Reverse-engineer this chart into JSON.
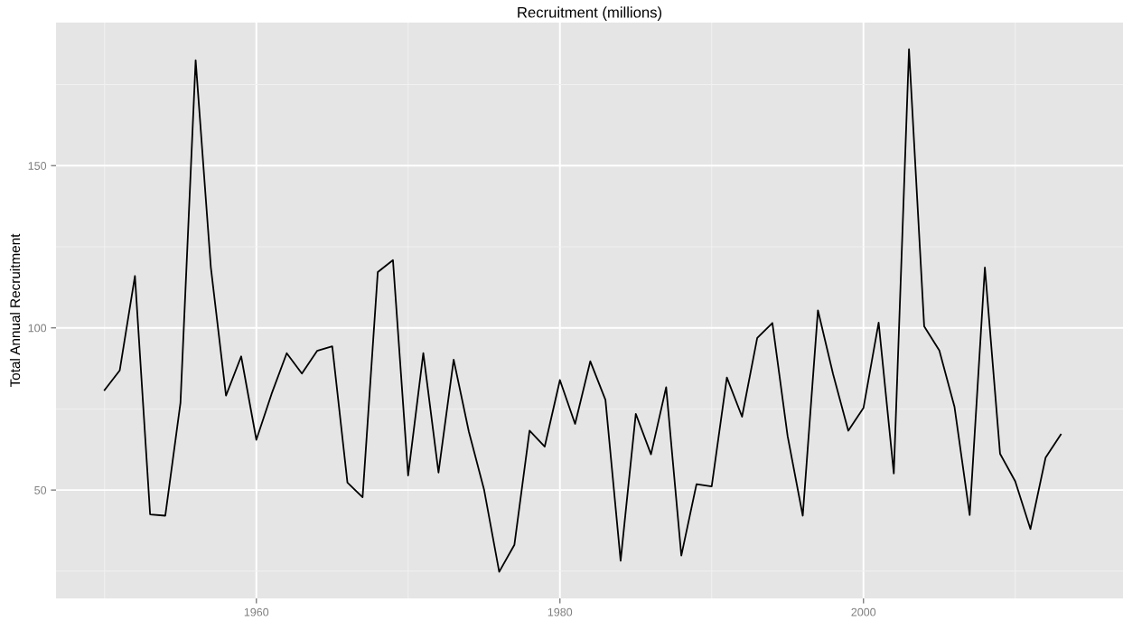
{
  "chart_data": {
    "type": "line",
    "title": "Recruitment (millions)",
    "ylabel": "Total Annual Recruitment",
    "x": [
      1950,
      1951,
      1952,
      1953,
      1954,
      1955,
      1956,
      1957,
      1958,
      1959,
      1960,
      1961,
      1962,
      1963,
      1964,
      1965,
      1966,
      1967,
      1968,
      1969,
      1970,
      1971,
      1972,
      1973,
      1974,
      1975,
      1976,
      1977,
      1978,
      1979,
      1980,
      1981,
      1982,
      1983,
      1984,
      1985,
      1986,
      1987,
      1988,
      1989,
      1990,
      1991,
      1992,
      1993,
      1994,
      1995,
      1996,
      1997,
      1998,
      1999,
      2000,
      2001,
      2002,
      2003,
      2004,
      2005,
      2006,
      2007,
      2008,
      2009,
      2010,
      2011,
      2012,
      2013
    ],
    "series": [
      {
        "color": "#000000",
        "values": [
          80.8,
          86.9,
          116.0,
          42.5,
          42.1,
          76.9,
          182.5,
          118.7,
          79.1,
          91.2,
          65.5,
          79.6,
          92.2,
          85.9,
          92.9,
          94.3,
          52.3,
          47.8,
          117.2,
          120.9,
          54.5,
          92.2,
          55.4,
          90.2,
          68.0,
          50.2,
          24.8,
          33.1,
          68.3,
          63.4,
          83.9,
          70.4,
          89.7,
          77.8,
          28.2,
          73.5,
          61.0,
          81.7,
          29.8,
          51.8,
          51.1,
          84.7,
          72.6,
          96.9,
          101.5,
          66.7,
          42.1,
          105.4,
          85.7,
          68.3,
          75.3,
          101.6,
          55.1,
          185.9,
          100.5,
          93.0,
          75.6,
          42.3,
          118.6,
          61.2,
          52.7,
          38.0,
          60.0,
          67.1
        ]
      }
    ],
    "xlim": [
      1946.8,
      2017.1
    ],
    "xticks": [
      1960,
      1980,
      2000
    ],
    "ylim": [
      16.6,
      194.1
    ],
    "yticks": [
      50,
      100,
      150
    ],
    "grid": true,
    "line_style": "solid",
    "marker": "none"
  }
}
